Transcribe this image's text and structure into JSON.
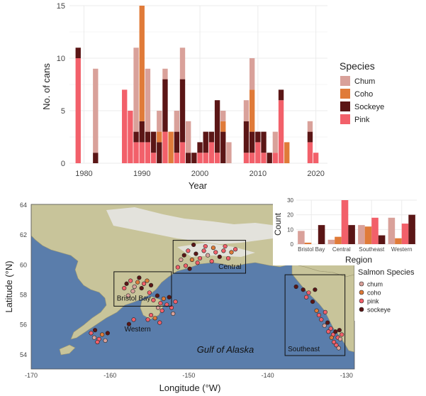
{
  "colors": {
    "chum": "#d9a19a",
    "coho": "#e07b39",
    "sockeye": "#5b1616",
    "pink": "#f2606a",
    "panel_bg": "#ffffff",
    "grid": "#ebebeb",
    "ocean": "#5a7dab",
    "land": "#c8c49a",
    "highlands": "#e8e8e8"
  },
  "chart_data": [
    {
      "type": "bar",
      "stacked": true,
      "xlabel": "Year",
      "ylabel": "No. of cans",
      "xlim": [
        1977.5,
        2022
      ],
      "ylim": [
        0,
        15
      ],
      "xticks": [
        1980,
        1990,
        2000,
        2010,
        2020
      ],
      "yticks": [
        0,
        5,
        10,
        15
      ],
      "grid": true,
      "legend": {
        "title": "Species",
        "position": "right",
        "entries": [
          "Chum",
          "Coho",
          "Sockeye",
          "Pink"
        ]
      },
      "stack_order": [
        "pink",
        "sockeye",
        "coho",
        "chum"
      ],
      "series": [
        {
          "name": "Chum",
          "key": "chum"
        },
        {
          "name": "Coho",
          "key": "coho"
        },
        {
          "name": "Sockeye",
          "key": "sockeye"
        },
        {
          "name": "Pink",
          "key": "pink"
        }
      ],
      "years": [
        {
          "year": 1979,
          "pink": 10,
          "sockeye": 1,
          "coho": 0,
          "chum": 0
        },
        {
          "year": 1982,
          "pink": 0,
          "sockeye": 1,
          "coho": 0,
          "chum": 8
        },
        {
          "year": 1987,
          "pink": 7,
          "sockeye": 0,
          "coho": 0,
          "chum": 0
        },
        {
          "year": 1988,
          "pink": 5,
          "sockeye": 0,
          "coho": 0,
          "chum": 0
        },
        {
          "year": 1989,
          "pink": 2,
          "sockeye": 1,
          "coho": 0,
          "chum": 8
        },
        {
          "year": 1990,
          "pink": 2,
          "sockeye": 2,
          "coho": 11,
          "chum": 0
        },
        {
          "year": 1991,
          "pink": 2,
          "sockeye": 1,
          "coho": 0,
          "chum": 6
        },
        {
          "year": 1992,
          "pink": 1,
          "sockeye": 2,
          "coho": 0,
          "chum": 0
        },
        {
          "year": 1993,
          "pink": 0,
          "sockeye": 2,
          "coho": 1,
          "chum": 2
        },
        {
          "year": 1994,
          "pink": 3,
          "sockeye": 5,
          "coho": 0,
          "chum": 1
        },
        {
          "year": 1995,
          "pink": 0,
          "sockeye": 0,
          "coho": 3,
          "chum": 0
        },
        {
          "year": 1996,
          "pink": 1,
          "sockeye": 2,
          "coho": 0,
          "chum": 2
        },
        {
          "year": 1997,
          "pink": 2,
          "sockeye": 6,
          "coho": 0,
          "chum": 3
        },
        {
          "year": 1998,
          "pink": 0,
          "sockeye": 1,
          "coho": 0,
          "chum": 3
        },
        {
          "year": 1999,
          "pink": 0,
          "sockeye": 1,
          "coho": 0,
          "chum": 0
        },
        {
          "year": 2000,
          "pink": 1,
          "sockeye": 1,
          "coho": 0,
          "chum": 0
        },
        {
          "year": 2001,
          "pink": 1,
          "sockeye": 2,
          "coho": 0,
          "chum": 0
        },
        {
          "year": 2002,
          "pink": 2,
          "sockeye": 1,
          "coho": 0,
          "chum": 0
        },
        {
          "year": 2003,
          "pink": 1,
          "sockeye": 5,
          "coho": 0,
          "chum": 0
        },
        {
          "year": 2004,
          "pink": 0,
          "sockeye": 3,
          "coho": 1,
          "chum": 1
        },
        {
          "year": 2005,
          "pink": 0,
          "sockeye": 0,
          "coho": 0,
          "chum": 2
        },
        {
          "year": 2008,
          "pink": 1,
          "sockeye": 3,
          "coho": 0,
          "chum": 2
        },
        {
          "year": 2009,
          "pink": 1,
          "sockeye": 2,
          "coho": 4,
          "chum": 3
        },
        {
          "year": 2010,
          "pink": 2,
          "sockeye": 1,
          "coho": 0,
          "chum": 0
        },
        {
          "year": 2011,
          "pink": 1,
          "sockeye": 2,
          "coho": 0,
          "chum": 0
        },
        {
          "year": 2012,
          "pink": 0,
          "sockeye": 1,
          "coho": 0,
          "chum": 0
        },
        {
          "year": 2013,
          "pink": 1,
          "sockeye": 0,
          "coho": 0,
          "chum": 2
        },
        {
          "year": 2014,
          "pink": 6,
          "sockeye": 1,
          "coho": 0,
          "chum": 0
        },
        {
          "year": 2015,
          "pink": 0,
          "sockeye": 0,
          "coho": 2,
          "chum": 0
        },
        {
          "year": 2019,
          "pink": 2,
          "sockeye": 1,
          "coho": 0,
          "chum": 1
        },
        {
          "year": 2020,
          "pink": 1,
          "sockeye": 0,
          "coho": 0,
          "chum": 0
        }
      ]
    },
    {
      "type": "bar",
      "grouped": true,
      "xlabel": "Region",
      "ylabel": "Count",
      "ylim": [
        0,
        30
      ],
      "yticks": [
        0,
        10,
        20,
        30
      ],
      "grid": true,
      "categories": [
        "Bristol Bay",
        "Central",
        "Southeast",
        "Western"
      ],
      "series": [
        {
          "key": "chum",
          "values": [
            9,
            3,
            13,
            18
          ]
        },
        {
          "key": "coho",
          "values": [
            1,
            5,
            12,
            4
          ]
        },
        {
          "key": "pink",
          "values": [
            0,
            30,
            18,
            14
          ]
        },
        {
          "key": "sockeye",
          "values": [
            13,
            13,
            6,
            20
          ]
        }
      ]
    },
    {
      "type": "scatter",
      "map": true,
      "xlabel": "Longitude (°W)",
      "ylabel": "Latitude (°N)",
      "xlim": [
        -170,
        -129
      ],
      "ylim": [
        53,
        64
      ],
      "xticks": [
        -170,
        -160,
        -150,
        -140,
        -130
      ],
      "yticks": [
        54,
        56,
        58,
        60,
        62,
        64
      ],
      "annotation": "Gulf of Alaska",
      "legend": {
        "title": "Salmon Species",
        "position": "right",
        "entries": [
          "chum",
          "coho",
          "pink",
          "sockeye"
        ]
      },
      "region_boxes": [
        {
          "label": "Central",
          "lon": [
            -152,
            -142.8
          ],
          "lat": [
            59.4,
            61.6
          ]
        },
        {
          "label": "Bristol Bay",
          "lon": [
            -159.5,
            -152.2
          ],
          "lat": [
            57.2,
            59.5
          ]
        },
        {
          "label": "Southeast",
          "lon": [
            -137.8,
            -130.2
          ],
          "lat": [
            53.9,
            59.3
          ]
        }
      ],
      "extra_labels": [
        {
          "label": "Western",
          "lon": -156.5,
          "lat": 55.7
        }
      ],
      "points": [
        {
          "lon": -162.4,
          "lat": 55.4,
          "s": "pink"
        },
        {
          "lon": -161.9,
          "lat": 55.6,
          "s": "sockeye"
        },
        {
          "lon": -161.4,
          "lat": 55.0,
          "s": "pink"
        },
        {
          "lon": -161.0,
          "lat": 55.3,
          "s": "coho"
        },
        {
          "lon": -160.6,
          "lat": 54.9,
          "s": "chum"
        },
        {
          "lon": -161.6,
          "lat": 54.8,
          "s": "pink"
        },
        {
          "lon": -160.3,
          "lat": 55.4,
          "s": "sockeye"
        },
        {
          "lon": -162.0,
          "lat": 55.1,
          "s": "chum"
        },
        {
          "lon": -157.6,
          "lat": 56.0,
          "s": "sockeye"
        },
        {
          "lon": -157.0,
          "lat": 56.3,
          "s": "pink"
        },
        {
          "lon": -157.9,
          "lat": 58.7,
          "s": "sockeye"
        },
        {
          "lon": -157.4,
          "lat": 58.9,
          "s": "pink"
        },
        {
          "lon": -156.9,
          "lat": 58.5,
          "s": "chum"
        },
        {
          "lon": -156.5,
          "lat": 58.8,
          "s": "coho"
        },
        {
          "lon": -156.0,
          "lat": 58.4,
          "s": "sockeye"
        },
        {
          "lon": -155.7,
          "lat": 58.7,
          "s": "pink"
        },
        {
          "lon": -157.1,
          "lat": 58.2,
          "s": "chum"
        },
        {
          "lon": -156.3,
          "lat": 59.1,
          "s": "sockeye"
        },
        {
          "lon": -155.3,
          "lat": 58.9,
          "s": "coho"
        },
        {
          "lon": -158.2,
          "lat": 58.4,
          "s": "pink"
        },
        {
          "lon": -154.8,
          "lat": 58.6,
          "s": "sockeye"
        },
        {
          "lon": -157.7,
          "lat": 57.9,
          "s": "chum"
        },
        {
          "lon": -155.0,
          "lat": 58.1,
          "s": "pink"
        },
        {
          "lon": -154.5,
          "lat": 57.6,
          "s": "pink"
        },
        {
          "lon": -154.0,
          "lat": 57.9,
          "s": "sockeye"
        },
        {
          "lon": -153.6,
          "lat": 57.4,
          "s": "pink"
        },
        {
          "lon": -153.2,
          "lat": 57.7,
          "s": "coho"
        },
        {
          "lon": -152.8,
          "lat": 57.3,
          "s": "pink"
        },
        {
          "lon": -153.9,
          "lat": 57.1,
          "s": "chum"
        },
        {
          "lon": -152.5,
          "lat": 57.8,
          "s": "sockeye"
        },
        {
          "lon": -152.2,
          "lat": 57.1,
          "s": "pink"
        },
        {
          "lon": -153.4,
          "lat": 56.9,
          "s": "pink"
        },
        {
          "lon": -152.0,
          "lat": 56.7,
          "s": "chum"
        },
        {
          "lon": -154.8,
          "lat": 56.6,
          "s": "pink"
        },
        {
          "lon": -155.2,
          "lat": 56.3,
          "s": "pink"
        },
        {
          "lon": -154.3,
          "lat": 56.4,
          "s": "coho"
        },
        {
          "lon": -153.7,
          "lat": 56.1,
          "s": "pink"
        },
        {
          "lon": -151.7,
          "lat": 57.5,
          "s": "pink"
        },
        {
          "lon": -150.6,
          "lat": 60.6,
          "s": "sockeye"
        },
        {
          "lon": -150.1,
          "lat": 60.9,
          "s": "pink"
        },
        {
          "lon": -149.6,
          "lat": 60.3,
          "s": "coho"
        },
        {
          "lon": -149.1,
          "lat": 60.7,
          "s": "sockeye"
        },
        {
          "lon": -148.6,
          "lat": 60.4,
          "s": "pink"
        },
        {
          "lon": -148.1,
          "lat": 60.9,
          "s": "pink"
        },
        {
          "lon": -147.6,
          "lat": 60.6,
          "s": "chum"
        },
        {
          "lon": -147.1,
          "lat": 60.2,
          "s": "pink"
        },
        {
          "lon": -146.6,
          "lat": 60.8,
          "s": "pink"
        },
        {
          "lon": -146.1,
          "lat": 60.5,
          "s": "sockeye"
        },
        {
          "lon": -145.6,
          "lat": 60.9,
          "s": "pink"
        },
        {
          "lon": -145.0,
          "lat": 60.4,
          "s": "pink"
        },
        {
          "lon": -144.6,
          "lat": 60.8,
          "s": "coho"
        },
        {
          "lon": -151.0,
          "lat": 60.3,
          "s": "chum"
        },
        {
          "lon": -150.4,
          "lat": 59.9,
          "s": "pink"
        },
        {
          "lon": -149.9,
          "lat": 59.7,
          "s": "sockeye"
        },
        {
          "lon": -151.4,
          "lat": 59.8,
          "s": "pink"
        },
        {
          "lon": -148.9,
          "lat": 60.1,
          "s": "pink"
        },
        {
          "lon": -147.9,
          "lat": 61.2,
          "s": "pink"
        },
        {
          "lon": -146.9,
          "lat": 61.1,
          "s": "coho"
        },
        {
          "lon": -145.4,
          "lat": 61.2,
          "s": "pink"
        },
        {
          "lon": -149.4,
          "lat": 61.3,
          "s": "sockeye"
        },
        {
          "lon": -144.1,
          "lat": 61.0,
          "s": "pink"
        },
        {
          "lon": -136.4,
          "lat": 58.5,
          "s": "sockeye"
        },
        {
          "lon": -135.5,
          "lat": 58.3,
          "s": "sockeye"
        },
        {
          "lon": -134.8,
          "lat": 58.1,
          "s": "pink"
        },
        {
          "lon": -134.3,
          "lat": 57.5,
          "s": "sockeye"
        },
        {
          "lon": -133.8,
          "lat": 56.9,
          "s": "coho"
        },
        {
          "lon": -133.2,
          "lat": 56.3,
          "s": "pink"
        },
        {
          "lon": -132.7,
          "lat": 56.8,
          "s": "pink"
        },
        {
          "lon": -132.4,
          "lat": 56.1,
          "s": "sockeye"
        },
        {
          "lon": -132.0,
          "lat": 55.7,
          "s": "pink"
        },
        {
          "lon": -131.7,
          "lat": 55.3,
          "s": "pink"
        },
        {
          "lon": -131.4,
          "lat": 55.5,
          "s": "sockeye"
        },
        {
          "lon": -131.1,
          "lat": 55.1,
          "s": "pink"
        },
        {
          "lon": -130.8,
          "lat": 55.0,
          "s": "chum"
        },
        {
          "lon": -131.6,
          "lat": 54.8,
          "s": "pink"
        },
        {
          "lon": -131.9,
          "lat": 55.1,
          "s": "coho"
        },
        {
          "lon": -132.3,
          "lat": 55.5,
          "s": "pink"
        },
        {
          "lon": -130.9,
          "lat": 55.6,
          "s": "sockeye"
        },
        {
          "lon": -131.3,
          "lat": 54.6,
          "s": "pink"
        },
        {
          "lon": -132.8,
          "lat": 55.9,
          "s": "chum"
        },
        {
          "lon": -133.5,
          "lat": 56.6,
          "s": "pink"
        },
        {
          "lon": -130.6,
          "lat": 55.3,
          "s": "pink"
        },
        {
          "lon": -131.0,
          "lat": 54.4,
          "s": "chum"
        },
        {
          "lon": -134.0,
          "lat": 58.3,
          "s": "sockeye"
        },
        {
          "lon": -135.1,
          "lat": 57.8,
          "s": "pink"
        }
      ]
    }
  ]
}
